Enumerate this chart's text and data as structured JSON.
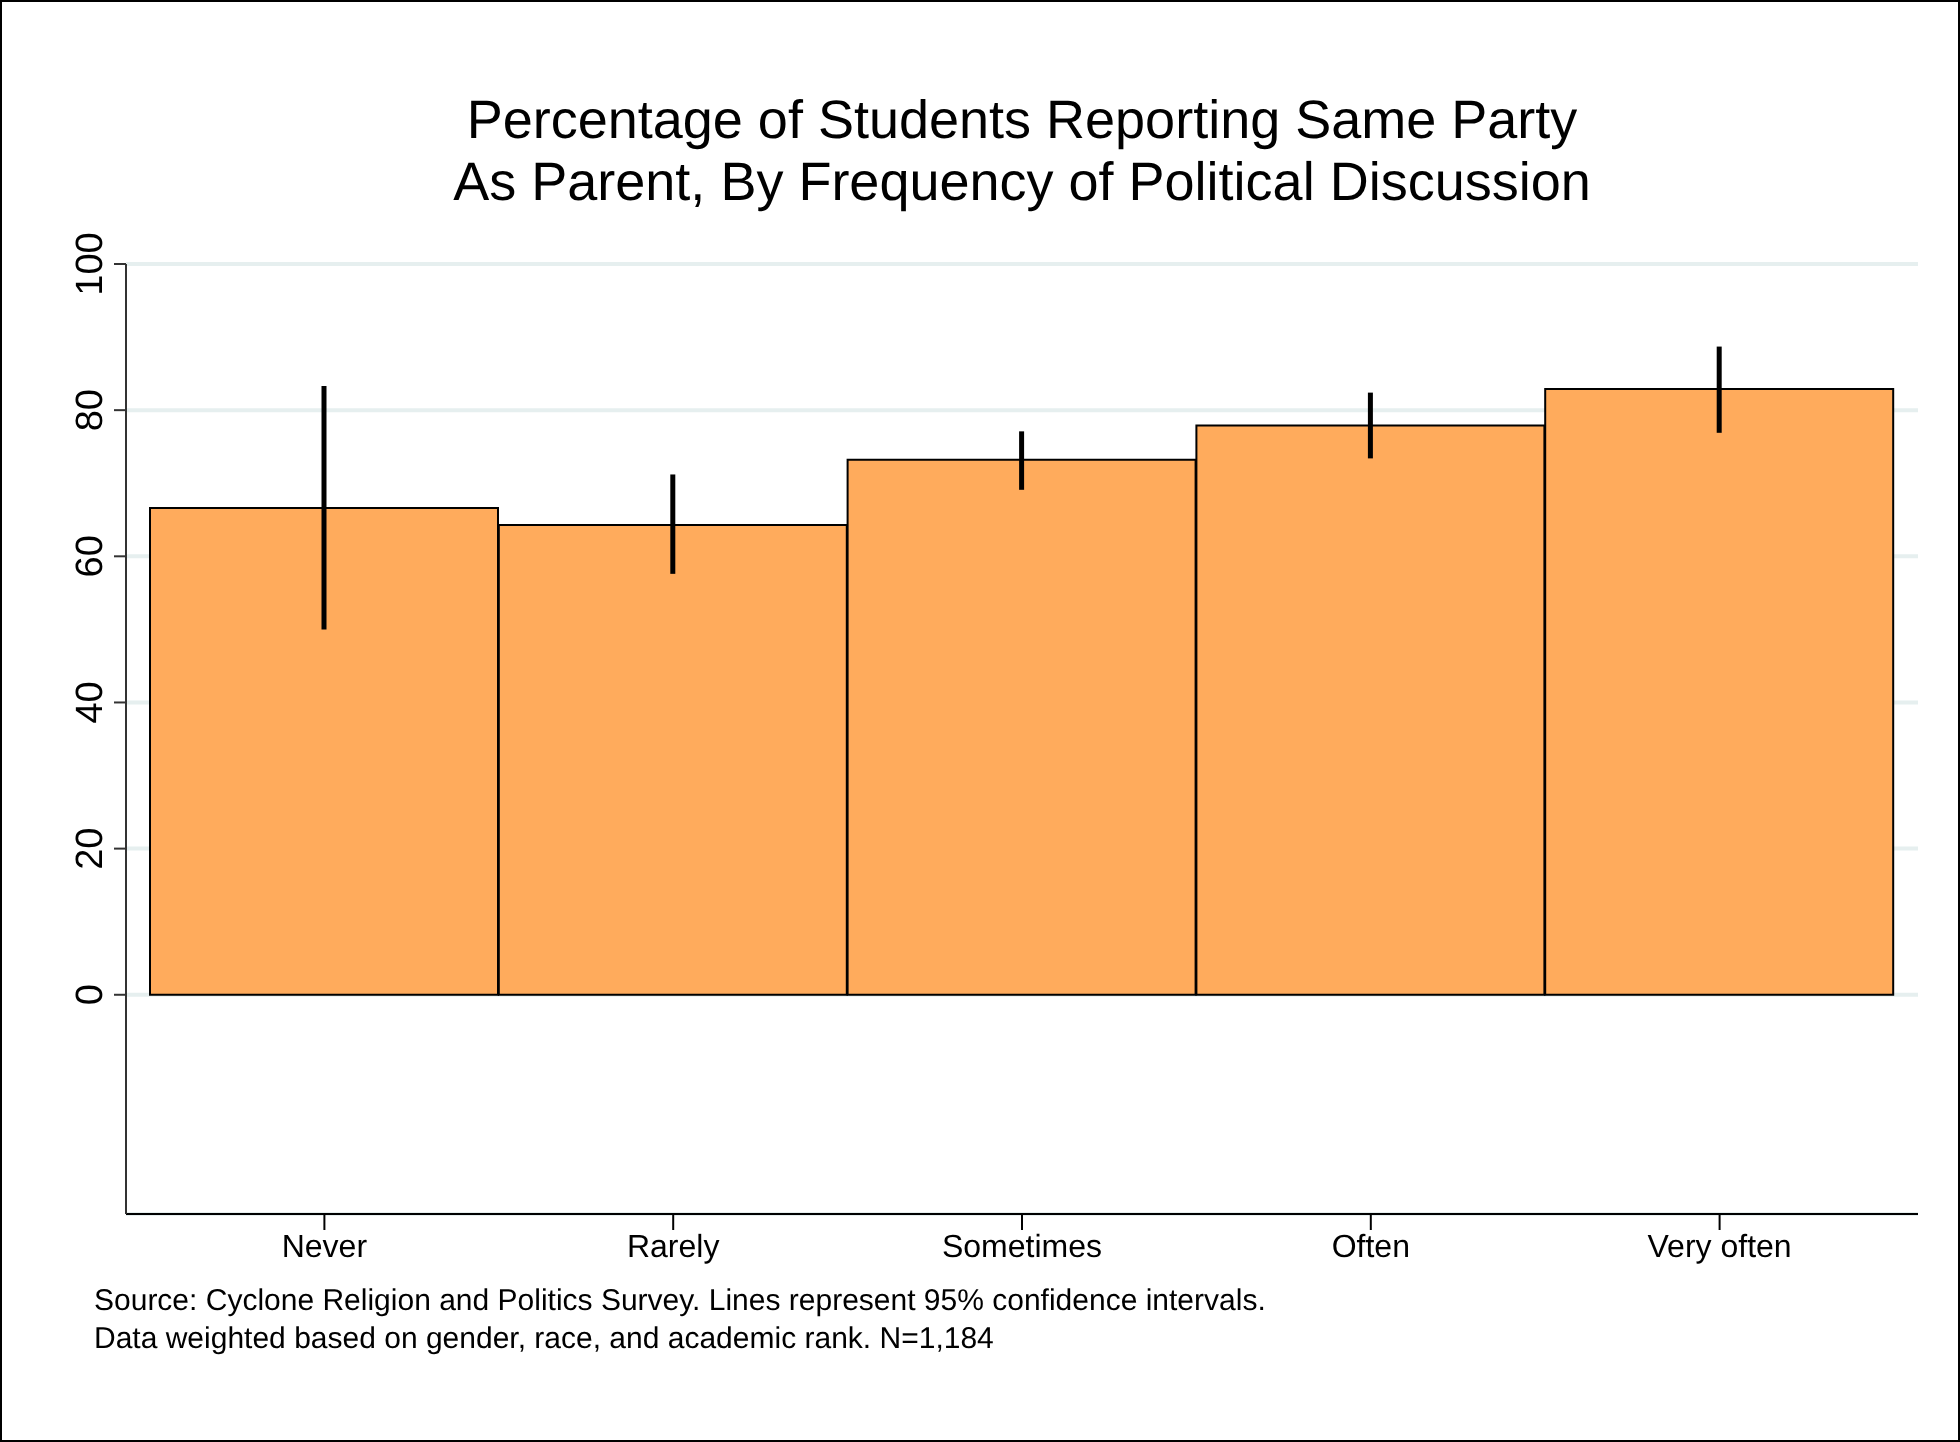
{
  "chart_data": {
    "type": "bar",
    "title": "Percentage of Students Reporting Same Party\nAs Parent, By Frequency of Political Discussion",
    "categories": [
      "Never",
      "Rarely",
      "Sometimes",
      "Often",
      "Very often"
    ],
    "values": [
      66.6,
      64.3,
      73.2,
      77.9,
      82.9
    ],
    "errors": [
      [
        50.0,
        83.3
      ],
      [
        57.6,
        71.2
      ],
      [
        69.1,
        77.1
      ],
      [
        73.4,
        82.4
      ],
      [
        76.9,
        88.7
      ]
    ],
    "color": "#ffab5c",
    "ylim": [
      -30,
      100
    ],
    "yticks": [
      0,
      20,
      40,
      60,
      80,
      100
    ],
    "grid": "y",
    "annotations": [
      "Source: Cyclone Religion and Politics Survey. Lines represent 95% confidence intervals.",
      "Data weighted based on gender, race, and academic rank. N=1,184"
    ]
  }
}
